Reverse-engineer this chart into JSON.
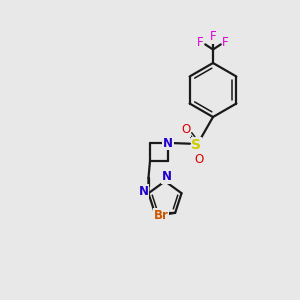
{
  "bg_color": "#e8e8e8",
  "bond_color": "#1a1a1a",
  "N_color": "#2200cc",
  "O_color": "#dd0000",
  "S_color": "#cccc00",
  "F_color": "#dd00dd",
  "Br_color": "#cc5500",
  "lw": 1.6,
  "xlim": [
    0,
    10
  ],
  "ylim": [
    0,
    10
  ]
}
